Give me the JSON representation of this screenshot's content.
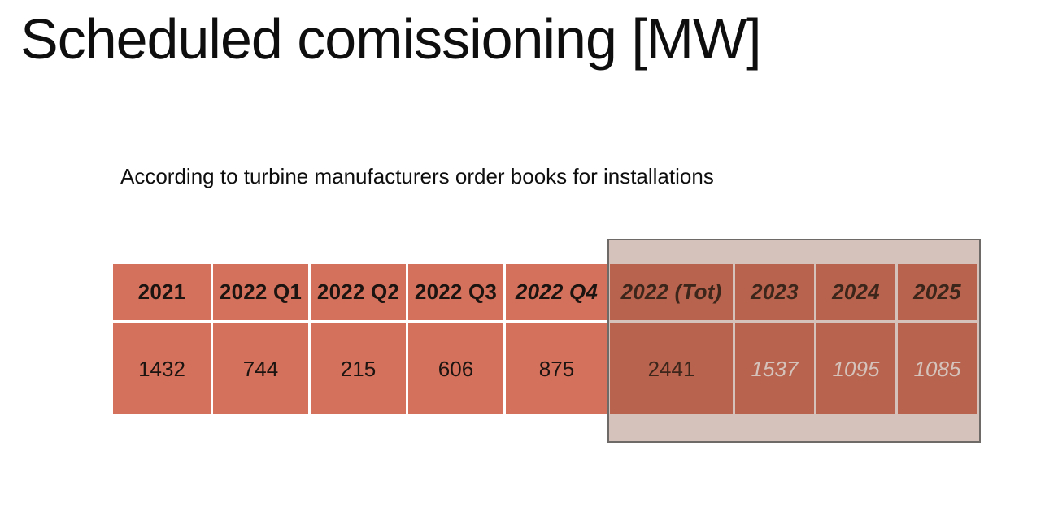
{
  "slide": {
    "title": "Scheduled comissioning [MW]",
    "subtitle": "According to turbine manufacturers order books for installations"
  },
  "table": {
    "columns": [
      {
        "header": "2021",
        "value": "1432",
        "header_italic": false,
        "value_italic": false,
        "value_light": false,
        "highlighted": false
      },
      {
        "header": "2022 Q1",
        "value": "744",
        "header_italic": false,
        "value_italic": false,
        "value_light": false,
        "highlighted": false
      },
      {
        "header": "2022 Q2",
        "value": "215",
        "header_italic": false,
        "value_italic": false,
        "value_light": false,
        "highlighted": false
      },
      {
        "header": "2022 Q3",
        "value": "606",
        "header_italic": false,
        "value_italic": false,
        "value_light": false,
        "highlighted": false
      },
      {
        "header": "2022 Q4",
        "value": "875",
        "header_italic": true,
        "value_italic": false,
        "value_light": false,
        "highlighted": false
      },
      {
        "header": "2022 (Tot)",
        "value": "2441",
        "header_italic": true,
        "value_italic": false,
        "value_light": false,
        "highlighted": true
      },
      {
        "header": "2023",
        "value": "1537",
        "header_italic": true,
        "value_italic": true,
        "value_light": true,
        "highlighted": true
      },
      {
        "header": "2024",
        "value": "1095",
        "header_italic": true,
        "value_italic": true,
        "value_light": true,
        "highlighted": true
      },
      {
        "header": "2025",
        "value": "1085",
        "header_italic": true,
        "value_italic": true,
        "value_light": true,
        "highlighted": true
      }
    ]
  },
  "highlight": {
    "covered_columns": [
      "2022 (Tot)",
      "2023",
      "2024",
      "2025"
    ]
  },
  "colors": {
    "title_text": "#0e0e0e",
    "cell_bg": "#d3715c",
    "text_dark": "#1c1410",
    "text_light": "#ffffff",
    "overlay_fill": "rgba(126,74,49,0.33)",
    "overlay_border": "#6e6a68"
  }
}
